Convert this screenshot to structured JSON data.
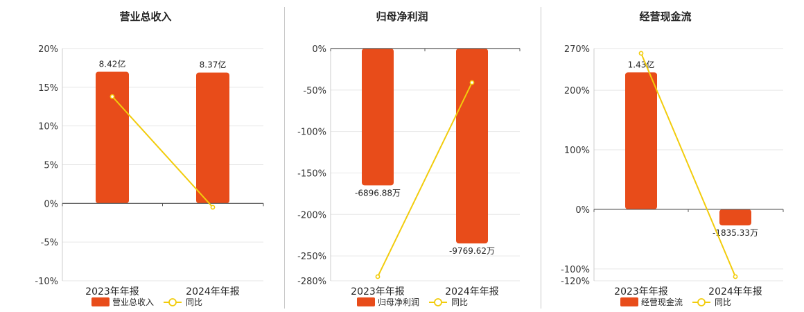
{
  "colors": {
    "bar": "#e84c1a",
    "line": "#f2cc0c",
    "grid": "#e6e6e6",
    "axis": "#555555"
  },
  "chart_data": [
    {
      "type": "bar",
      "title": "营业总收入",
      "categories": [
        "2023年年报",
        "2024年年报"
      ],
      "series": [
        {
          "name": "营业总收入",
          "kind": "bar",
          "values": [
            17,
            16.9
          ],
          "labels": [
            "8.42亿",
            "8.37亿"
          ]
        },
        {
          "name": "同比",
          "kind": "line",
          "values": [
            13.8,
            -0.5
          ]
        }
      ],
      "yticks": [
        20,
        15,
        10,
        5,
        0,
        -5,
        -10
      ],
      "ytick_labels": [
        "20%",
        "15%",
        "10%",
        "5%",
        "0%",
        "-5%",
        "-10%"
      ],
      "ylim": [
        -10,
        20
      ],
      "grid": true,
      "legend": "bottom"
    },
    {
      "type": "bar",
      "title": "归母净利润",
      "categories": [
        "2023年年报",
        "2024年年报"
      ],
      "series": [
        {
          "name": "归母净利润",
          "kind": "bar",
          "values": [
            -165,
            -235
          ],
          "labels": [
            "-6896.88万",
            "-9769.62万"
          ]
        },
        {
          "name": "同比",
          "kind": "line",
          "values": [
            -275,
            -41
          ]
        }
      ],
      "yticks": [
        0,
        -50,
        -100,
        -150,
        -200,
        -250,
        -280
      ],
      "ytick_labels": [
        "0%",
        "-50%",
        "-100%",
        "-150%",
        "-200%",
        "-250%",
        "-280%"
      ],
      "ylim": [
        -280,
        0
      ],
      "grid": true,
      "legend": "bottom"
    },
    {
      "type": "bar",
      "title": "经营现金流",
      "categories": [
        "2023年年报",
        "2024年年报"
      ],
      "series": [
        {
          "name": "经营现金流",
          "kind": "bar",
          "values": [
            230,
            -27
          ],
          "labels": [
            "1.43亿",
            "-1835.33万"
          ]
        },
        {
          "name": "同比",
          "kind": "line",
          "values": [
            262,
            -113
          ]
        }
      ],
      "yticks": [
        270,
        200,
        100,
        0,
        -100,
        -120
      ],
      "ytick_labels": [
        "270%",
        "200%",
        "100%",
        "0%",
        "-100%",
        "-120%"
      ],
      "ylim": [
        -120,
        270
      ],
      "grid": true,
      "legend": "bottom"
    }
  ]
}
